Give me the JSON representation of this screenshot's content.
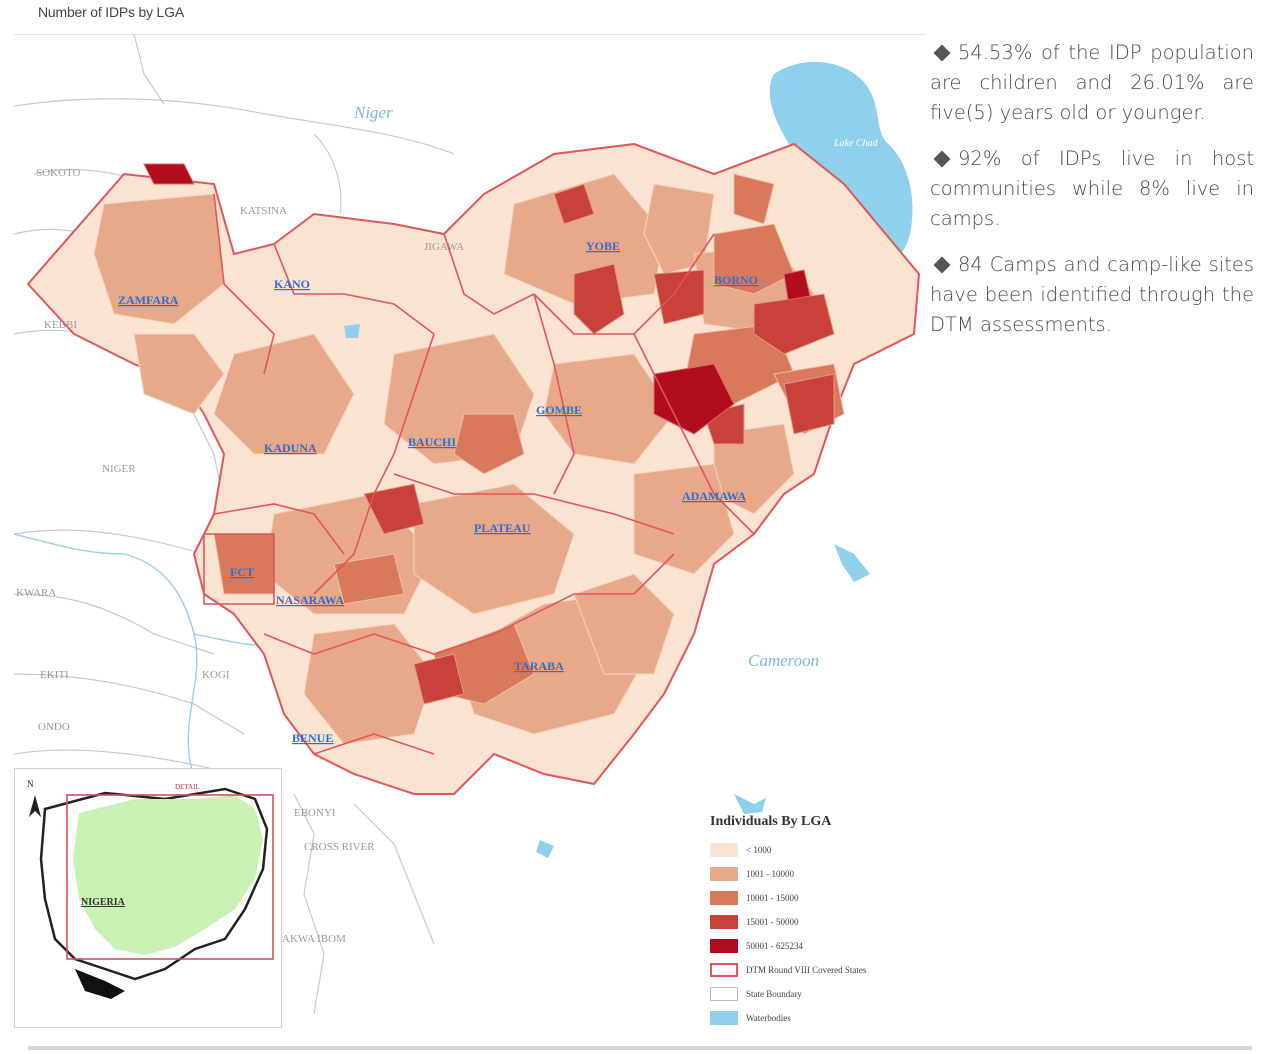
{
  "header": {
    "title": "Number of IDPs by LGA"
  },
  "facts": [
    {
      "text": "54.53% of the IDP population are children  and 26.01% are five(5) years old or younger."
    },
    {
      "text": "92% of IDPs live in host communities while 8% live in camps."
    },
    {
      "text": "84 Camps and camp-like sites have been identified through the DTM assessments."
    }
  ],
  "map": {
    "states": [
      "ZAMFARA",
      "KANO",
      "YOBE",
      "BORNO",
      "KADUNA",
      "BAUCHI",
      "GOMBE",
      "ADAMAWA",
      "PLATEAU",
      "FCT",
      "NASARAWA",
      "TARABA",
      "BENUE"
    ],
    "neighbors": [
      "SOKOTO",
      "KATSINA",
      "JIGAWA",
      "KEBBI",
      "NIGER",
      "KWARA",
      "EKITI",
      "KOGI",
      "ONDO",
      "EBONYI",
      "CROSS RIVER",
      "AKWA IBOM"
    ],
    "countries": [
      "Niger",
      "Cameroon"
    ],
    "lake": "Lake Chad",
    "colors": {
      "class1": "#fbe3d2",
      "class2": "#e8a98a",
      "class3": "#d9785a",
      "class4": "#c8423a",
      "class5": "#b10d1c",
      "covered_outline": "#e0565c",
      "water": "#8fd0ec"
    }
  },
  "inset": {
    "north": "N",
    "detail": "DETAIL",
    "country": "NIGERIA"
  },
  "legend": {
    "title": "Individuals By LGA",
    "items": [
      {
        "label": "< 1000",
        "color": "#fbe3d2",
        "kind": "fill"
      },
      {
        "label": "1001 - 10000",
        "color": "#e8a98a",
        "kind": "fill"
      },
      {
        "label": "10001 - 15000",
        "color": "#d9785a",
        "kind": "fill"
      },
      {
        "label": "15001 - 50000",
        "color": "#c8423a",
        "kind": "fill"
      },
      {
        "label": "50001 - 625234",
        "color": "#b10d1c",
        "kind": "fill"
      },
      {
        "label": "DTM Round VIII Covered States",
        "color": "#e0565c",
        "kind": "outline"
      },
      {
        "label": "State Boundary",
        "color": "#bbbbbb",
        "kind": "outline-thin"
      },
      {
        "label": "Waterbodies",
        "color": "#8fd0ec",
        "kind": "fill"
      }
    ]
  }
}
